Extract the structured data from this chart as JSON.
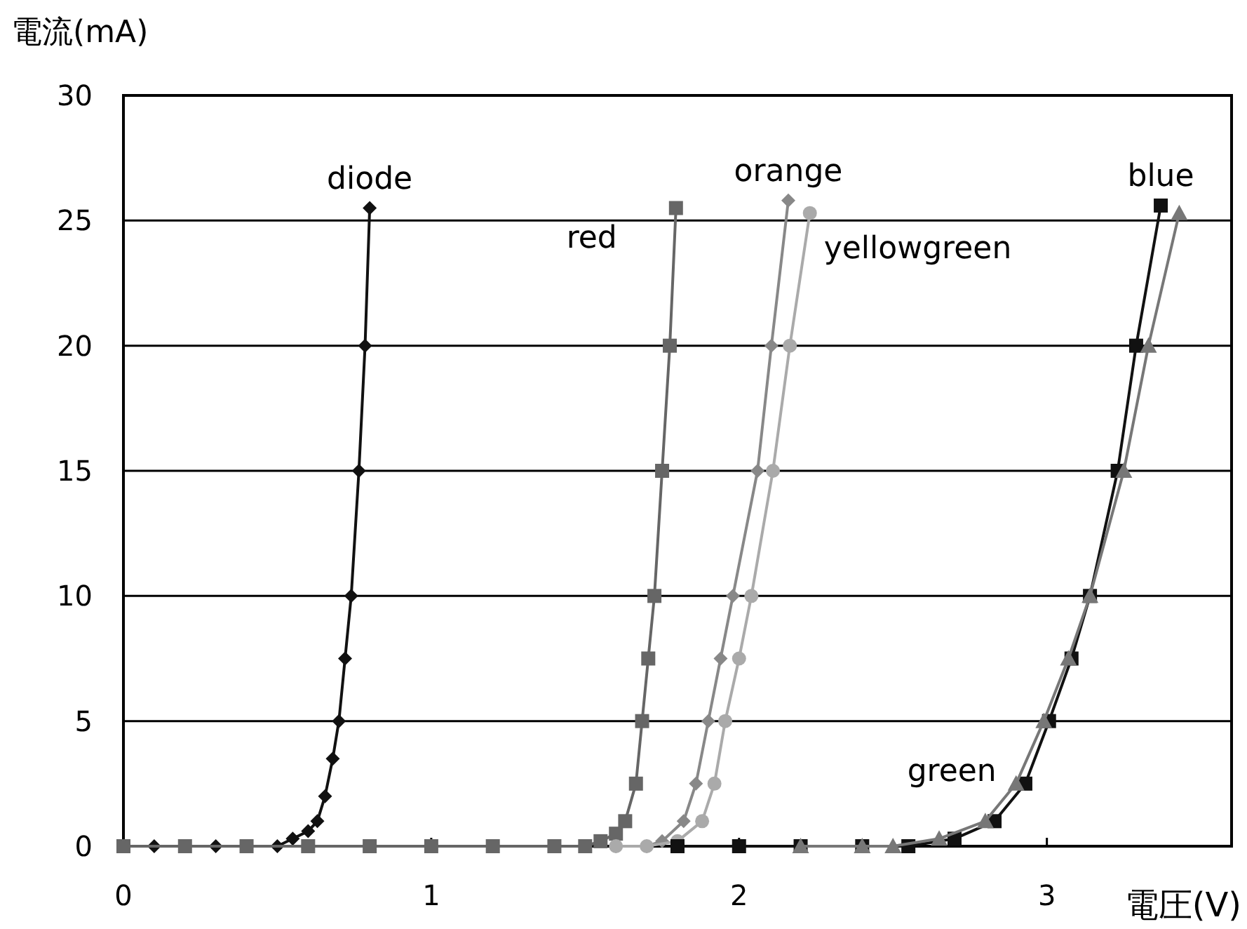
{
  "chart_data": {
    "type": "line",
    "xlabel": "電圧(V)",
    "ylabel": "電流(mA)",
    "xlim": [
      0,
      3.6
    ],
    "xticks": [
      0,
      1,
      2,
      3
    ],
    "ylim": [
      0,
      30
    ],
    "yticks": [
      0,
      5,
      10,
      15,
      20,
      25,
      30
    ],
    "grid": "y",
    "series": [
      {
        "name": "diode",
        "color": "#111111",
        "marker": "diamond",
        "x": [
          0,
          0.1,
          0.2,
          0.3,
          0.4,
          0.5,
          0.55,
          0.6,
          0.63,
          0.655,
          0.68,
          0.7,
          0.72,
          0.74,
          0.765,
          0.785,
          0.8
        ],
        "values": [
          0,
          0,
          0,
          0,
          0,
          0,
          0.3,
          0.6,
          1,
          2,
          3.5,
          5,
          7.5,
          10,
          15,
          20,
          25.5
        ]
      },
      {
        "name": "red",
        "color": "#666666",
        "marker": "square",
        "x": [
          0,
          0.2,
          0.4,
          0.6,
          0.8,
          1.0,
          1.2,
          1.4,
          1.5,
          1.55,
          1.6,
          1.63,
          1.665,
          1.685,
          1.705,
          1.725,
          1.75,
          1.775,
          1.795
        ],
        "values": [
          0,
          0,
          0,
          0,
          0,
          0,
          0,
          0,
          0,
          0.2,
          0.5,
          1,
          2.5,
          5,
          7.5,
          10,
          15,
          20,
          25.5
        ]
      },
      {
        "name": "orange",
        "color": "#888888",
        "marker": "diamond",
        "x": [
          1.6,
          1.7,
          1.75,
          1.82,
          1.86,
          1.9,
          1.94,
          1.98,
          2.06,
          2.105,
          2.16
        ],
        "values": [
          0,
          0,
          0.2,
          1,
          2.5,
          5,
          7.5,
          10,
          15,
          20,
          25.8
        ]
      },
      {
        "name": "yellowgreen",
        "color": "#aaaaaa",
        "marker": "circle",
        "x": [
          1.6,
          1.7,
          1.8,
          1.88,
          1.92,
          1.955,
          2.0,
          2.04,
          2.11,
          2.165,
          2.23
        ],
        "values": [
          0,
          0,
          0.2,
          1,
          2.5,
          5,
          7.5,
          10,
          15,
          20,
          25.3
        ]
      },
      {
        "name": "blue",
        "color": "#111111",
        "marker": "square",
        "x": [
          1.8,
          2.0,
          2.2,
          2.4,
          2.55,
          2.7,
          2.83,
          2.93,
          3.007,
          3.08,
          3.14,
          3.23,
          3.29,
          3.37
        ],
        "values": [
          0,
          0,
          0,
          0,
          0,
          0.3,
          1,
          2.5,
          5,
          7.5,
          10,
          15,
          20,
          25.6
        ]
      },
      {
        "name": "green",
        "color": "#777777",
        "marker": "triangle",
        "x": [
          2.2,
          2.4,
          2.5,
          2.65,
          2.8,
          2.9,
          2.99,
          3.07,
          3.14,
          3.25,
          3.33,
          3.43
        ],
        "values": [
          0,
          0,
          0,
          0.3,
          1,
          2.5,
          5,
          7.5,
          10,
          15,
          20,
          25.3
        ]
      }
    ]
  }
}
